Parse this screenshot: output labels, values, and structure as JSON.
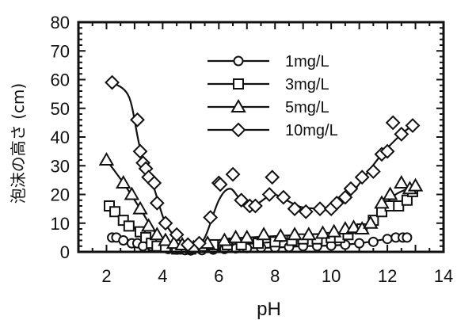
{
  "chart_data": {
    "type": "line",
    "title": "",
    "xlabel": "pH",
    "ylabel": "泡沫の高さ (cm)",
    "xlim": [
      1,
      14
    ],
    "ylim": [
      0,
      80
    ],
    "xticks": [
      2,
      4,
      6,
      8,
      10,
      12,
      14
    ],
    "yticks": [
      0,
      10,
      20,
      30,
      40,
      50,
      60,
      70,
      80
    ],
    "grid": false,
    "legend_position": "top-right",
    "series": [
      {
        "name": "1mg/L",
        "marker": "circle",
        "points": [
          [
            2.2,
            5
          ],
          [
            2.35,
            5
          ],
          [
            2.6,
            4
          ],
          [
            2.9,
            3
          ],
          [
            3.1,
            3
          ],
          [
            3.3,
            2
          ],
          [
            3.6,
            2
          ],
          [
            3.9,
            1.5
          ],
          [
            4.2,
            1
          ],
          [
            4.5,
            0.8
          ],
          [
            4.8,
            0.6
          ],
          [
            5.0,
            0.5
          ],
          [
            5.4,
            0.6
          ],
          [
            5.8,
            0.8
          ],
          [
            6.2,
            1
          ],
          [
            6.6,
            1.2
          ],
          [
            7.0,
            1.3
          ],
          [
            7.5,
            1.5
          ],
          [
            8.0,
            1.5
          ],
          [
            8.5,
            1.7
          ],
          [
            9.0,
            2
          ],
          [
            9.5,
            2
          ],
          [
            10.0,
            2.2
          ],
          [
            10.5,
            2.5
          ],
          [
            11.0,
            3
          ],
          [
            11.5,
            3.5
          ],
          [
            12.0,
            4.5
          ],
          [
            12.3,
            5
          ],
          [
            12.55,
            5
          ],
          [
            12.7,
            5
          ]
        ],
        "curve": [
          [
            2.2,
            5
          ],
          [
            3.0,
            3.5
          ],
          [
            4.0,
            1.2
          ],
          [
            5.0,
            0.5
          ],
          [
            6.0,
            1
          ],
          [
            7.0,
            1.3
          ],
          [
            8.0,
            1.5
          ],
          [
            9.0,
            2
          ],
          [
            10.0,
            2.2
          ],
          [
            11.0,
            3
          ],
          [
            12.0,
            4.5
          ],
          [
            12.7,
            5
          ]
        ]
      },
      {
        "name": "3mg/L",
        "marker": "square",
        "points": [
          [
            2.1,
            16
          ],
          [
            2.3,
            14
          ],
          [
            2.6,
            11
          ],
          [
            2.8,
            9
          ],
          [
            3.2,
            7
          ],
          [
            3.4,
            5
          ],
          [
            3.6,
            3
          ],
          [
            3.8,
            2
          ],
          [
            4.1,
            1.5
          ],
          [
            4.5,
            1
          ],
          [
            5.0,
            1
          ],
          [
            5.4,
            2
          ],
          [
            5.8,
            2.5
          ],
          [
            6.3,
            2.5
          ],
          [
            6.8,
            2.5
          ],
          [
            7.4,
            3
          ],
          [
            8.0,
            3.5
          ],
          [
            8.6,
            4
          ],
          [
            9.0,
            4.5
          ],
          [
            9.5,
            4.5
          ],
          [
            10.0,
            5
          ],
          [
            10.3,
            5
          ],
          [
            10.6,
            6
          ],
          [
            11.1,
            8
          ],
          [
            11.5,
            11
          ],
          [
            11.8,
            14
          ],
          [
            12.1,
            16
          ],
          [
            12.4,
            16
          ],
          [
            12.7,
            18
          ],
          [
            12.9,
            21
          ]
        ],
        "curve": [
          [
            2.1,
            16
          ],
          [
            2.6,
            11
          ],
          [
            3.2,
            7
          ],
          [
            3.8,
            2.5
          ],
          [
            4.5,
            1
          ],
          [
            5.0,
            1
          ],
          [
            6.0,
            2.5
          ],
          [
            7.0,
            2.8
          ],
          [
            8.0,
            3.5
          ],
          [
            9.0,
            4.5
          ],
          [
            10.0,
            5
          ],
          [
            10.6,
            6
          ],
          [
            11.1,
            8
          ],
          [
            11.8,
            14
          ],
          [
            12.4,
            17
          ],
          [
            12.9,
            21
          ]
        ]
      },
      {
        "name": "5mg/L",
        "marker": "triangle",
        "points": [
          [
            2.0,
            32
          ],
          [
            2.6,
            24
          ],
          [
            2.9,
            20
          ],
          [
            3.2,
            15
          ],
          [
            3.5,
            9
          ],
          [
            3.8,
            6
          ],
          [
            4.1,
            4
          ],
          [
            4.4,
            3
          ],
          [
            4.7,
            2.5
          ],
          [
            5.1,
            1.5
          ],
          [
            5.6,
            3
          ],
          [
            6.2,
            4
          ],
          [
            6.6,
            5
          ],
          [
            7.0,
            5
          ],
          [
            7.6,
            6
          ],
          [
            8.2,
            5.5
          ],
          [
            8.7,
            6
          ],
          [
            9.2,
            6
          ],
          [
            9.7,
            6.5
          ],
          [
            10.1,
            7
          ],
          [
            10.5,
            8
          ],
          [
            10.8,
            8.5
          ],
          [
            11.1,
            8
          ],
          [
            11.4,
            10
          ],
          [
            11.8,
            17
          ],
          [
            12.1,
            20
          ],
          [
            12.5,
            24
          ],
          [
            12.8,
            22
          ],
          [
            13.0,
            23
          ]
        ],
        "curve": [
          [
            2.0,
            32
          ],
          [
            2.6,
            24
          ],
          [
            3.2,
            15
          ],
          [
            3.8,
            6
          ],
          [
            4.4,
            3
          ],
          [
            5.1,
            2
          ],
          [
            5.6,
            3
          ],
          [
            6.2,
            4.5
          ],
          [
            7.0,
            5
          ],
          [
            8.0,
            5.5
          ],
          [
            9.0,
            6
          ],
          [
            10.0,
            6.5
          ],
          [
            10.8,
            7.5
          ],
          [
            11.4,
            10
          ],
          [
            11.8,
            15
          ],
          [
            12.3,
            20
          ],
          [
            13.0,
            23
          ]
        ]
      },
      {
        "name": "10mg/L",
        "marker": "diamond",
        "points": [
          [
            2.2,
            59
          ],
          [
            3.1,
            46
          ],
          [
            3.2,
            35
          ],
          [
            3.3,
            31
          ],
          [
            3.4,
            29
          ],
          [
            3.5,
            26
          ],
          [
            3.7,
            24
          ],
          [
            3.8,
            17
          ],
          [
            4.1,
            10
          ],
          [
            4.5,
            6
          ],
          [
            4.9,
            2.5
          ],
          [
            5.3,
            3
          ],
          [
            5.7,
            12
          ],
          [
            6.0,
            24
          ],
          [
            6.05,
            23.5
          ],
          [
            6.5,
            27
          ],
          [
            6.8,
            18
          ],
          [
            7.1,
            16
          ],
          [
            7.3,
            16
          ],
          [
            7.8,
            20
          ],
          [
            7.9,
            26
          ],
          [
            8.3,
            19
          ],
          [
            8.7,
            15
          ],
          [
            9.1,
            14
          ],
          [
            9.6,
            15
          ],
          [
            10.0,
            15
          ],
          [
            10.2,
            17
          ],
          [
            10.5,
            19
          ],
          [
            10.7,
            22
          ],
          [
            11.1,
            26
          ],
          [
            11.5,
            28
          ],
          [
            11.8,
            34
          ],
          [
            12.0,
            35
          ],
          [
            12.2,
            45
          ],
          [
            12.5,
            41
          ],
          [
            12.9,
            44
          ]
        ],
        "curve": [
          [
            2.2,
            59
          ],
          [
            2.8,
            54
          ],
          [
            3.2,
            36
          ],
          [
            3.7,
            22
          ],
          [
            4.1,
            10
          ],
          [
            4.6,
            4
          ],
          [
            5.1,
            1.5
          ],
          [
            5.5,
            5
          ],
          [
            6.0,
            18
          ],
          [
            6.4,
            22
          ],
          [
            6.8,
            18
          ],
          [
            7.3,
            16.5
          ],
          [
            7.9,
            20
          ],
          [
            8.4,
            18
          ],
          [
            9.0,
            15.5
          ],
          [
            10.0,
            15.5
          ],
          [
            10.6,
            19
          ],
          [
            11.1,
            25
          ],
          [
            11.8,
            34
          ],
          [
            12.5,
            41
          ],
          [
            12.9,
            44
          ]
        ]
      }
    ]
  }
}
